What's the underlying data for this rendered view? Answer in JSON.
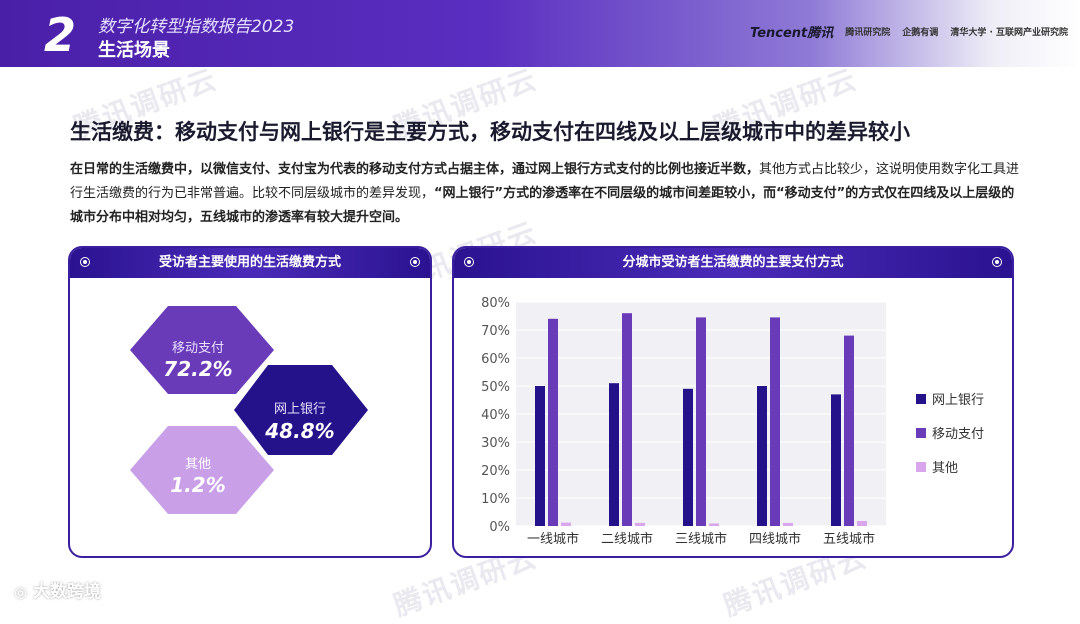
{
  "header": {
    "section_number": "2",
    "report_title": "数字化转型指数报告2023",
    "section_name": "生活场景",
    "logos": [
      "Tencent腾讯",
      "腾讯研究院",
      "企鹅有调",
      "清华大学 · 互联网产业研究院"
    ]
  },
  "watermark": "腾讯调研云",
  "headline": "生活缴费：移动支付与网上银行是主要方式，移动支付在四线及以上层级城市中的差异较小",
  "paragraph": {
    "p1_bold": "在日常的生活缴费中，以微信支付、支付宝为代表的移动支付方式占据主体，通过网上银行方式支付的比例也接近半数，",
    "p1_rest": "其他方式占比较少，这说明使用数字化工具进行生活缴费的行为已非常普遍。比较不同层级城市的差异发现，",
    "p2_bold": "“网上银行”方式的渗透率在不同层级的城市间差距较小，而“移动支付”的方式仅在四线及以上层级的城市分布中相对均匀，五线城市的渗透率有较大提升空间。"
  },
  "left_panel": {
    "title": "受访者主要使用的生活缴费方式",
    "hexes": [
      {
        "label": "移动支付",
        "value": "72.2%",
        "color": "#6a3bb8"
      },
      {
        "label": "网上银行",
        "value": "48.8%",
        "color": "#2a1290"
      },
      {
        "label": "其他",
        "value": "1.2%",
        "color": "#c9a0e8"
      }
    ]
  },
  "right_panel": {
    "title": "分城市受访者生活缴费的主要支付方式"
  },
  "chart_data": {
    "type": "bar",
    "categories": [
      "一线城市",
      "二线城市",
      "三线城市",
      "四线城市",
      "五线城市"
    ],
    "series": [
      {
        "name": "网上银行",
        "color": "#24128a",
        "values": [
          50,
          51,
          49,
          50,
          47
        ]
      },
      {
        "name": "移动支付",
        "color": "#6a3bb8",
        "values": [
          74,
          76,
          74.5,
          74.5,
          68
        ]
      },
      {
        "name": "其他",
        "color": "#d9a6ee",
        "values": [
          1.2,
          1.1,
          0.9,
          1.1,
          1.8
        ]
      }
    ],
    "yticks": [
      "0%",
      "10%",
      "20%",
      "30%",
      "40%",
      "50%",
      "60%",
      "70%",
      "80%"
    ],
    "ylim": [
      0,
      80
    ],
    "legend_position": "right",
    "grid": true
  },
  "footer": {
    "brand": "大数跨境"
  }
}
